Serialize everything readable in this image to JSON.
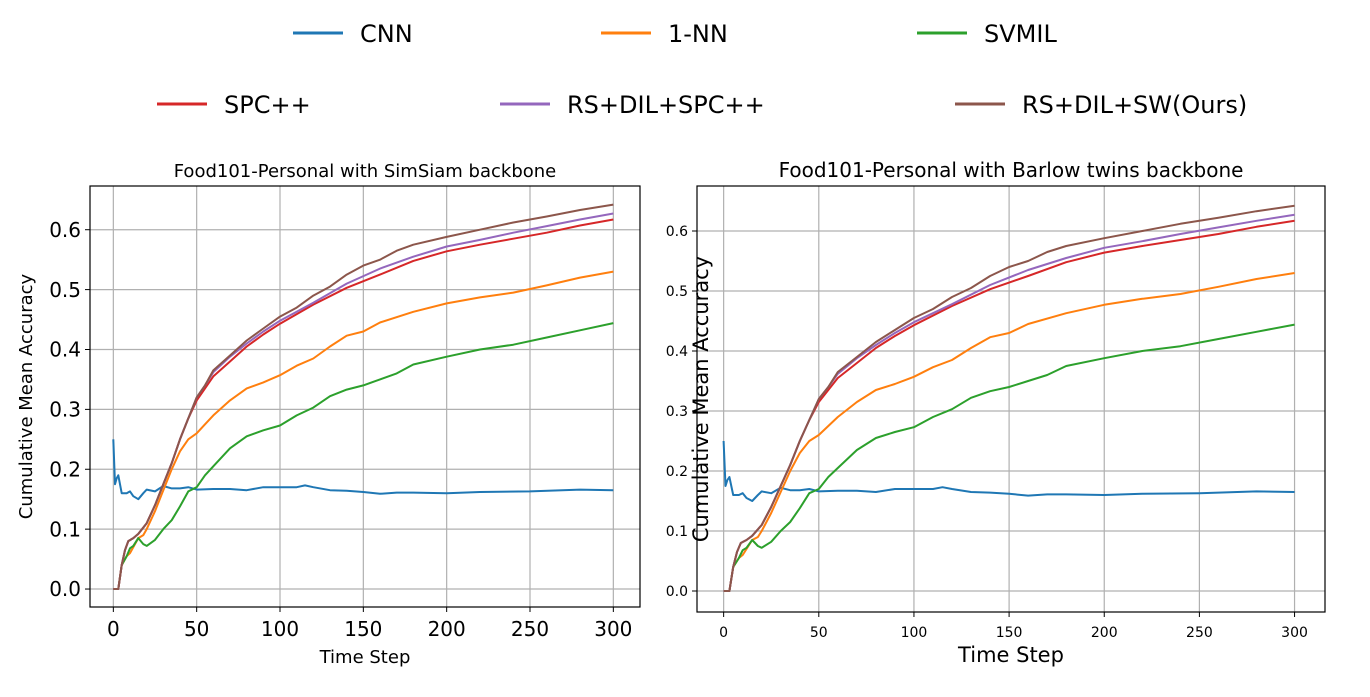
{
  "legend": {
    "placement": "top",
    "entries": [
      {
        "name": "CNN",
        "color": "#1f77b4"
      },
      {
        "name": "1-NN",
        "color": "#ff7f0e"
      },
      {
        "name": "SVMIL",
        "color": "#2ca02c"
      },
      {
        "name": "SPC++",
        "color": "#d62728"
      },
      {
        "name": "RS+DIL+SPC++",
        "color": "#9467bd"
      },
      {
        "name": "RS+DIL+SW(Ours)",
        "color": "#8c564b"
      }
    ]
  },
  "chart_data": [
    {
      "type": "line",
      "title": "Food101-Personal with SimSiam backbone",
      "xlabel": "Time Step",
      "ylabel": "Cumulative Mean Accuracy",
      "xlim": [
        -14,
        316
      ],
      "ylim": [
        -0.03,
        0.673
      ],
      "xticks": [
        0,
        50,
        100,
        150,
        200,
        250,
        300
      ],
      "xtick_labels": [
        "0",
        "50",
        "100",
        "150",
        "200",
        "250",
        "300"
      ],
      "yticks": [
        0.0,
        0.1,
        0.2,
        0.3,
        0.4,
        0.5,
        0.6
      ],
      "ytick_labels": [
        "0.0",
        "0.1",
        "0.2",
        "0.3",
        "0.4",
        "0.5",
        "0.6"
      ],
      "grid": true,
      "series_ref": "shared"
    },
    {
      "type": "line",
      "title": "Food101-Personal with Barlow twins backbone",
      "xlabel": "Time Step",
      "ylabel": "Cumulative Mean Accuracy",
      "xlim": [
        -14,
        316
      ],
      "ylim": [
        -0.035,
        0.675
      ],
      "xticks": [
        0,
        50,
        100,
        150,
        200,
        250,
        300
      ],
      "xtick_labels": [
        "0",
        "50",
        "100",
        "150",
        "200",
        "250",
        "300"
      ],
      "yticks": [
        0.0,
        0.1,
        0.2,
        0.3,
        0.4,
        0.5,
        0.6
      ],
      "ytick_labels": [
        "0.0",
        "0.1",
        "0.2",
        "0.3",
        "0.4",
        "0.5",
        "0.6"
      ],
      "grid": true,
      "series_ref": "shared"
    }
  ],
  "series": [
    {
      "name": "CNN",
      "color": "#1f77b4",
      "points": [
        [
          0,
          0.25
        ],
        [
          1,
          0.175
        ],
        [
          2,
          0.185
        ],
        [
          3,
          0.19
        ],
        [
          5,
          0.16
        ],
        [
          8,
          0.16
        ],
        [
          10,
          0.163
        ],
        [
          12,
          0.155
        ],
        [
          15,
          0.15
        ],
        [
          18,
          0.16
        ],
        [
          20,
          0.166
        ],
        [
          25,
          0.163
        ],
        [
          30,
          0.172
        ],
        [
          35,
          0.168
        ],
        [
          40,
          0.168
        ],
        [
          45,
          0.17
        ],
        [
          50,
          0.166
        ],
        [
          60,
          0.167
        ],
        [
          70,
          0.167
        ],
        [
          80,
          0.165
        ],
        [
          90,
          0.17
        ],
        [
          100,
          0.17
        ],
        [
          110,
          0.17
        ],
        [
          115,
          0.173
        ],
        [
          120,
          0.17
        ],
        [
          130,
          0.165
        ],
        [
          140,
          0.164
        ],
        [
          150,
          0.162
        ],
        [
          160,
          0.159
        ],
        [
          170,
          0.161
        ],
        [
          180,
          0.161
        ],
        [
          200,
          0.16
        ],
        [
          220,
          0.162
        ],
        [
          250,
          0.163
        ],
        [
          280,
          0.166
        ],
        [
          300,
          0.165
        ]
      ]
    },
    {
      "name": "1-NN",
      "color": "#ff7f0e",
      "points": [
        [
          0,
          0
        ],
        [
          3,
          0
        ],
        [
          5,
          0.04
        ],
        [
          8,
          0.055
        ],
        [
          10,
          0.06
        ],
        [
          15,
          0.085
        ],
        [
          18,
          0.09
        ],
        [
          20,
          0.1
        ],
        [
          25,
          0.13
        ],
        [
          30,
          0.165
        ],
        [
          35,
          0.2
        ],
        [
          40,
          0.23
        ],
        [
          45,
          0.25
        ],
        [
          50,
          0.26
        ],
        [
          55,
          0.275
        ],
        [
          60,
          0.29
        ],
        [
          70,
          0.315
        ],
        [
          80,
          0.335
        ],
        [
          90,
          0.345
        ],
        [
          100,
          0.357
        ],
        [
          110,
          0.373
        ],
        [
          120,
          0.385
        ],
        [
          130,
          0.405
        ],
        [
          140,
          0.423
        ],
        [
          150,
          0.43
        ],
        [
          160,
          0.445
        ],
        [
          180,
          0.463
        ],
        [
          200,
          0.477
        ],
        [
          220,
          0.487
        ],
        [
          240,
          0.495
        ],
        [
          260,
          0.507
        ],
        [
          280,
          0.52
        ],
        [
          300,
          0.53
        ]
      ]
    },
    {
      "name": "SVMIL",
      "color": "#2ca02c",
      "points": [
        [
          0,
          0
        ],
        [
          3,
          0
        ],
        [
          5,
          0.04
        ],
        [
          8,
          0.055
        ],
        [
          10,
          0.068
        ],
        [
          12,
          0.072
        ],
        [
          15,
          0.085
        ],
        [
          18,
          0.075
        ],
        [
          20,
          0.072
        ],
        [
          25,
          0.082
        ],
        [
          30,
          0.1
        ],
        [
          35,
          0.115
        ],
        [
          40,
          0.138
        ],
        [
          45,
          0.163
        ],
        [
          50,
          0.17
        ],
        [
          55,
          0.19
        ],
        [
          60,
          0.205
        ],
        [
          70,
          0.235
        ],
        [
          80,
          0.255
        ],
        [
          90,
          0.265
        ],
        [
          100,
          0.273
        ],
        [
          110,
          0.29
        ],
        [
          120,
          0.303
        ],
        [
          130,
          0.322
        ],
        [
          140,
          0.333
        ],
        [
          150,
          0.34
        ],
        [
          160,
          0.35
        ],
        [
          170,
          0.36
        ],
        [
          180,
          0.375
        ],
        [
          200,
          0.388
        ],
        [
          220,
          0.4
        ],
        [
          240,
          0.408
        ],
        [
          260,
          0.42
        ],
        [
          280,
          0.432
        ],
        [
          300,
          0.444
        ]
      ]
    },
    {
      "name": "SPC++",
      "color": "#d62728",
      "points": [
        [
          0,
          0
        ],
        [
          3,
          0
        ],
        [
          5,
          0.04
        ],
        [
          7,
          0.065
        ],
        [
          9,
          0.08
        ],
        [
          12,
          0.085
        ],
        [
          15,
          0.092
        ],
        [
          20,
          0.11
        ],
        [
          25,
          0.14
        ],
        [
          30,
          0.175
        ],
        [
          35,
          0.21
        ],
        [
          40,
          0.25
        ],
        [
          45,
          0.285
        ],
        [
          50,
          0.315
        ],
        [
          55,
          0.335
        ],
        [
          60,
          0.355
        ],
        [
          70,
          0.38
        ],
        [
          80,
          0.405
        ],
        [
          90,
          0.425
        ],
        [
          100,
          0.443
        ],
        [
          120,
          0.475
        ],
        [
          140,
          0.503
        ],
        [
          160,
          0.525
        ],
        [
          180,
          0.548
        ],
        [
          200,
          0.564
        ],
        [
          220,
          0.575
        ],
        [
          240,
          0.585
        ],
        [
          260,
          0.595
        ],
        [
          280,
          0.607
        ],
        [
          300,
          0.617
        ]
      ]
    },
    {
      "name": "RS+DIL+SPC++",
      "color": "#9467bd",
      "points": [
        [
          0,
          0
        ],
        [
          3,
          0
        ],
        [
          5,
          0.04
        ],
        [
          7,
          0.065
        ],
        [
          9,
          0.08
        ],
        [
          12,
          0.085
        ],
        [
          15,
          0.092
        ],
        [
          20,
          0.11
        ],
        [
          25,
          0.14
        ],
        [
          30,
          0.175
        ],
        [
          35,
          0.21
        ],
        [
          40,
          0.25
        ],
        [
          45,
          0.285
        ],
        [
          50,
          0.32
        ],
        [
          55,
          0.34
        ],
        [
          60,
          0.362
        ],
        [
          70,
          0.388
        ],
        [
          80,
          0.41
        ],
        [
          90,
          0.43
        ],
        [
          100,
          0.448
        ],
        [
          120,
          0.478
        ],
        [
          140,
          0.51
        ],
        [
          160,
          0.535
        ],
        [
          180,
          0.555
        ],
        [
          200,
          0.572
        ],
        [
          220,
          0.583
        ],
        [
          240,
          0.595
        ],
        [
          260,
          0.606
        ],
        [
          280,
          0.617
        ],
        [
          300,
          0.627
        ]
      ]
    },
    {
      "name": "RS+DIL+SW(Ours)",
      "color": "#8c564b",
      "points": [
        [
          0,
          0
        ],
        [
          3,
          0
        ],
        [
          5,
          0.04
        ],
        [
          7,
          0.065
        ],
        [
          9,
          0.08
        ],
        [
          12,
          0.085
        ],
        [
          15,
          0.092
        ],
        [
          20,
          0.11
        ],
        [
          25,
          0.14
        ],
        [
          30,
          0.175
        ],
        [
          35,
          0.21
        ],
        [
          40,
          0.25
        ],
        [
          45,
          0.285
        ],
        [
          50,
          0.32
        ],
        [
          55,
          0.34
        ],
        [
          60,
          0.365
        ],
        [
          70,
          0.39
        ],
        [
          80,
          0.415
        ],
        [
          90,
          0.435
        ],
        [
          100,
          0.455
        ],
        [
          110,
          0.47
        ],
        [
          120,
          0.49
        ],
        [
          130,
          0.505
        ],
        [
          140,
          0.525
        ],
        [
          150,
          0.54
        ],
        [
          160,
          0.55
        ],
        [
          170,
          0.565
        ],
        [
          180,
          0.575
        ],
        [
          200,
          0.588
        ],
        [
          220,
          0.6
        ],
        [
          240,
          0.612
        ],
        [
          260,
          0.622
        ],
        [
          280,
          0.633
        ],
        [
          300,
          0.642
        ]
      ]
    }
  ]
}
